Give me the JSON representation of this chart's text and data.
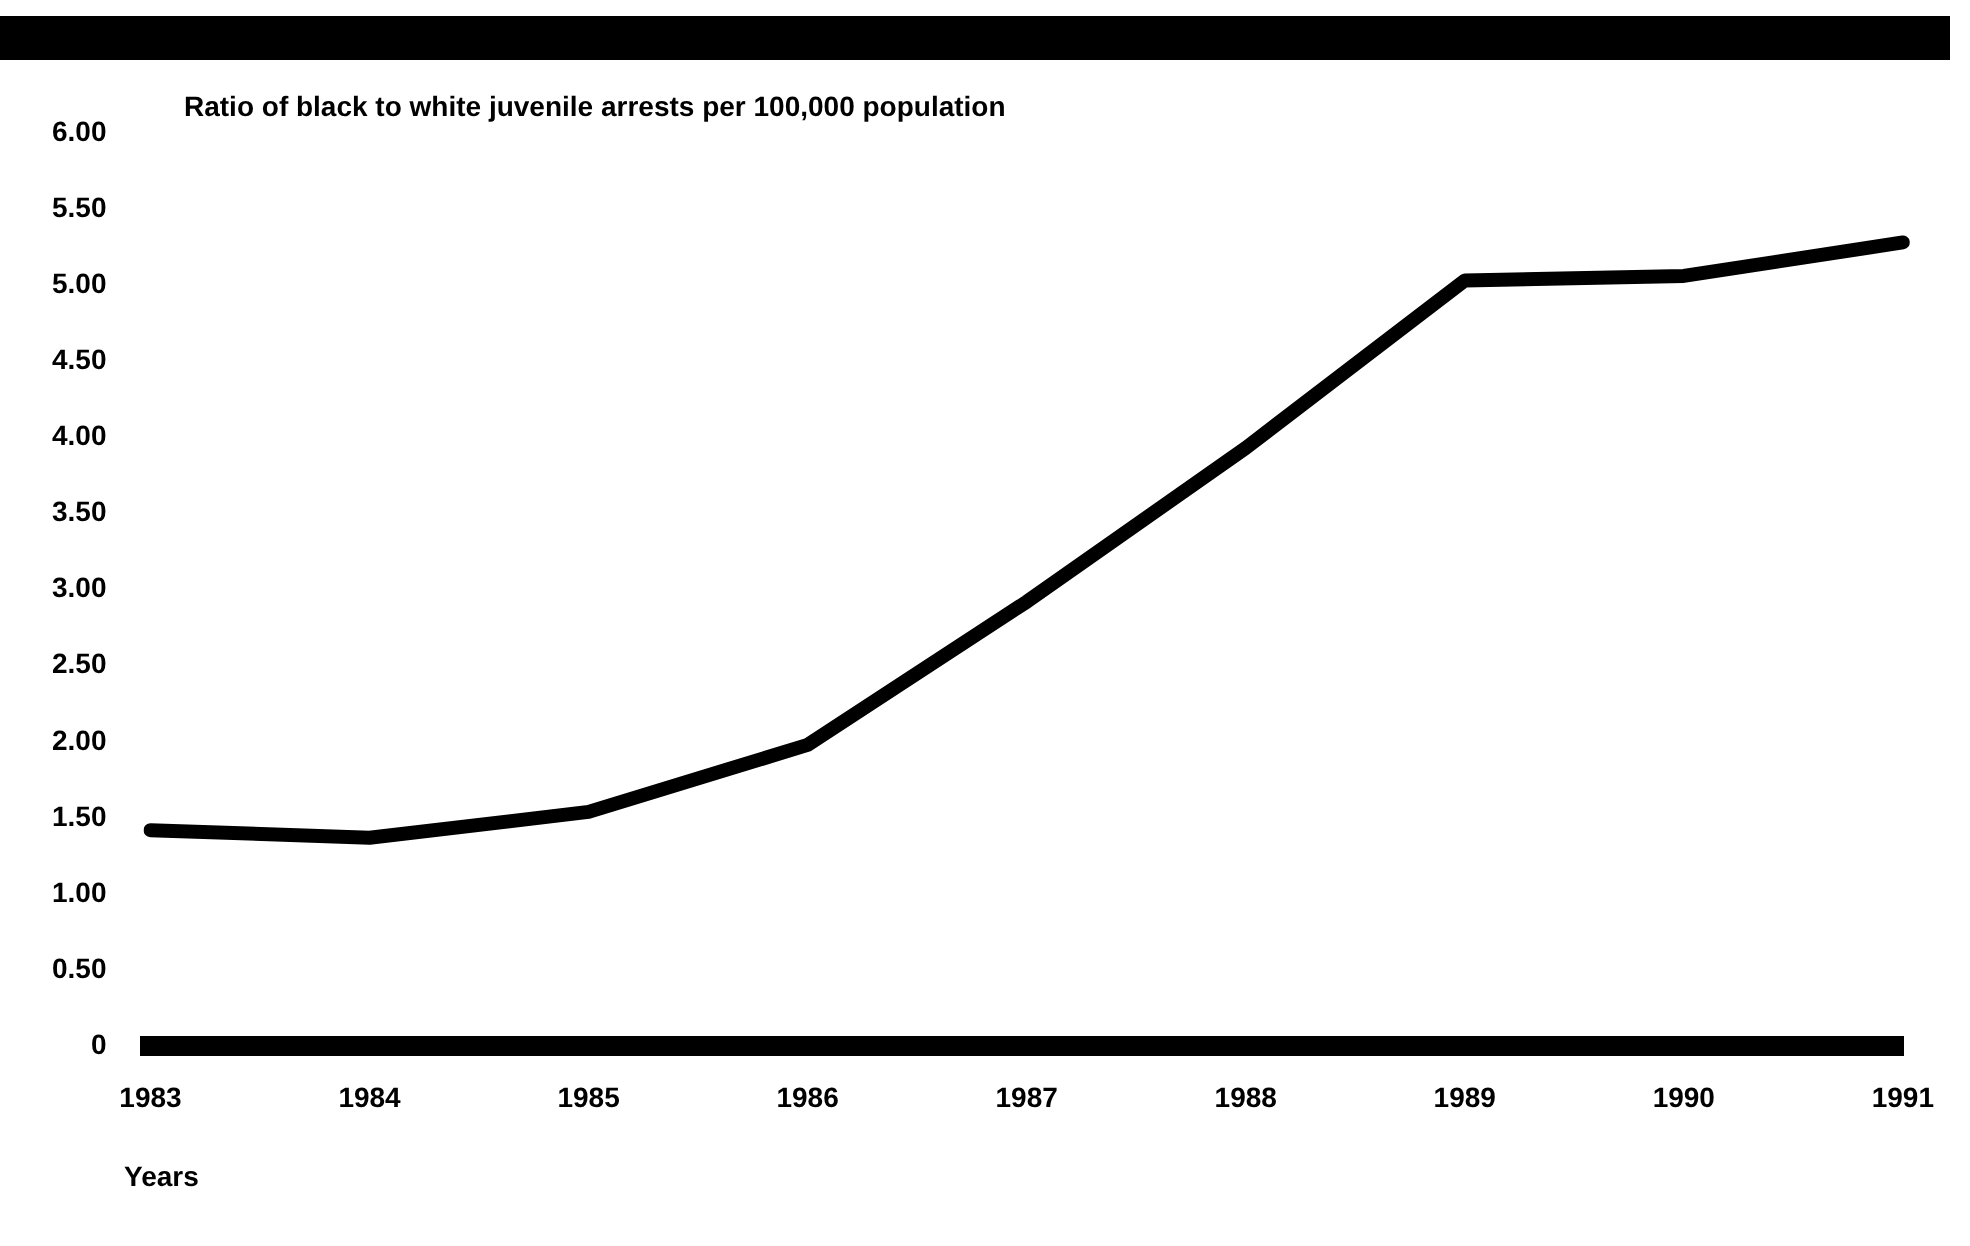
{
  "chart_data": {
    "type": "line",
    "title": "Ratio of black to white juvenile arrests per 100,000 population",
    "xlabel": "Years",
    "categories": [
      "1983",
      "1984",
      "1985",
      "1986",
      "1987",
      "1988",
      "1989",
      "1990",
      "1991"
    ],
    "series": [
      {
        "color": "#000000",
        "values": [
          1.42,
          1.37,
          1.54,
          1.98,
          2.92,
          3.93,
          5.03,
          5.06,
          5.28
        ]
      }
    ],
    "ylim": [
      0,
      6
    ],
    "yticks": [
      0,
      {
        "value": 0.5,
        "label": "0.50"
      },
      {
        "value": 1,
        "label": "1.00"
      },
      {
        "value": 1.5,
        "label": "1.50"
      },
      {
        "value": 2,
        "label": "2.00"
      },
      {
        "value": 2.5,
        "label": "2.50"
      },
      {
        "value": 3,
        "label": "3.00"
      },
      {
        "value": 3.5,
        "label": "3.50"
      },
      {
        "value": 4,
        "label": "4.00"
      },
      {
        "value": 4.5,
        "label": "4.50"
      },
      {
        "value": 5,
        "label": "5.00"
      },
      {
        "value": 5.5,
        "label": "5.50"
      },
      {
        "value": 6,
        "label": "6.00"
      }
    ],
    "grid": false,
    "legend": false,
    "marker": "none",
    "line_style": "solid"
  }
}
